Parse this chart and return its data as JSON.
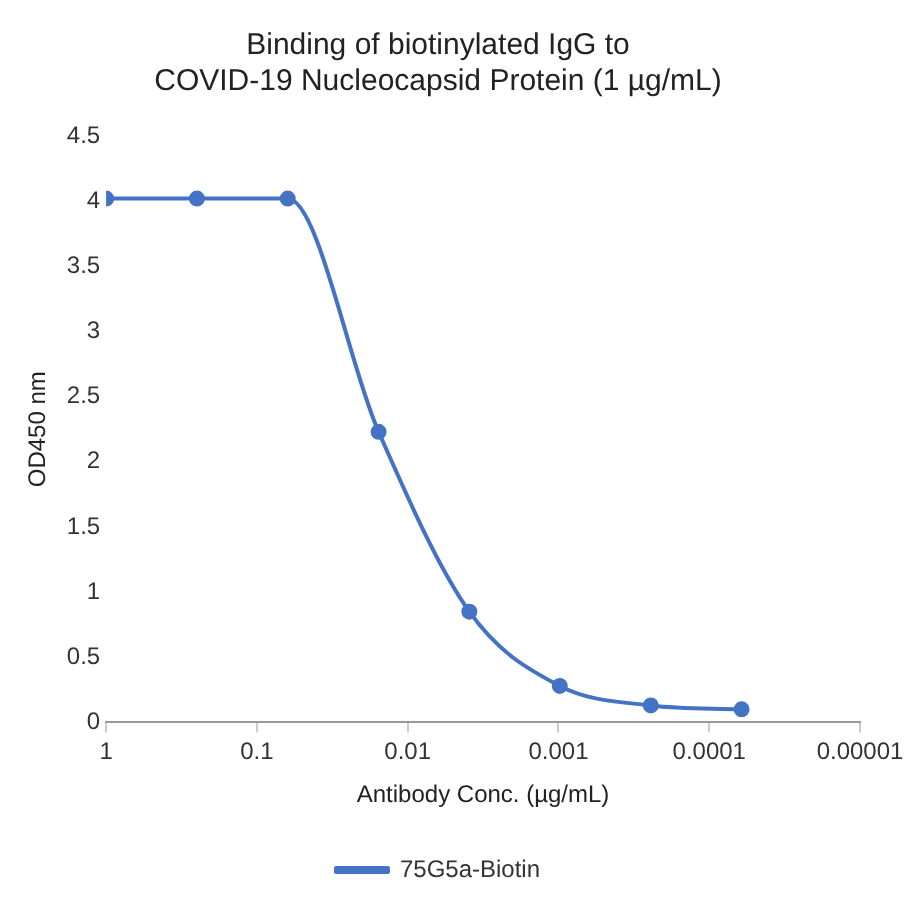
{
  "chart_data": {
    "type": "line",
    "title": "Binding of biotinylated IgG to\nCOVID-19 Nucleocapsid Protein (1 µg/mL)",
    "xlabel": "Antibody Conc. (µg/mL)",
    "ylabel": "OD450 nm",
    "x": [
      1,
      0.25,
      0.0625,
      0.0156,
      0.0039,
      0.00098,
      0.000244,
      6.1e-05
    ],
    "series": [
      {
        "name": "75G5a-Biotin",
        "color": "#4472c4",
        "values": [
          4.02,
          4.02,
          4.02,
          2.23,
          0.85,
          0.28,
          0.13,
          0.1
        ]
      }
    ],
    "log": "x",
    "xlim": [
      1,
      1e-05
    ],
    "xticks": [
      1,
      0.1,
      0.01,
      0.001,
      0.0001,
      {
        "value": 1e-05,
        "label": "0.00001"
      }
    ],
    "ylim": [
      0,
      4.5
    ],
    "yticks": [
      0,
      0.5,
      1,
      1.5,
      2,
      2.5,
      3,
      3.5,
      4,
      4.5
    ],
    "grid": false,
    "legend": "bottom",
    "marker": "circle",
    "line_style": "solid"
  }
}
